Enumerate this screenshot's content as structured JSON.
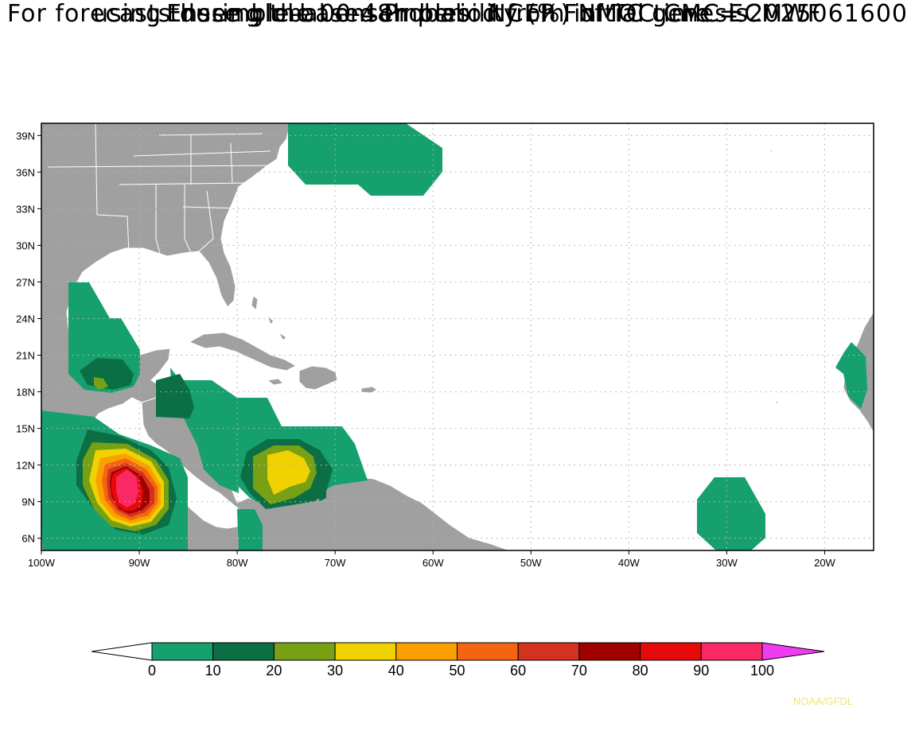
{
  "title": {
    "line1": "Ensemble-based Probability (%) of TC genesis",
    "line2": "using these global ensembles:   NCEP FNMOC CMC ECMWF",
    "line3": "For forecasts during the 00-48h period from initial time = 2025061600"
  },
  "map": {
    "projection": "cylindrical",
    "lon_range": [
      -100,
      -15
    ],
    "lat_range": [
      5,
      40
    ],
    "lon_ticks": [
      -100,
      -90,
      -80,
      -70,
      -60,
      -50,
      -40,
      -30,
      -20
    ],
    "lon_tick_labels": [
      "100W",
      "90W",
      "80W",
      "70W",
      "60W",
      "50W",
      "40W",
      "30W",
      "20W"
    ],
    "lat_ticks": [
      6,
      9,
      12,
      15,
      18,
      21,
      24,
      27,
      30,
      33,
      36,
      39
    ],
    "lat_tick_labels": [
      "6N",
      "9N",
      "12N",
      "15N",
      "18N",
      "21N",
      "24N",
      "27N",
      "30N",
      "33N",
      "36N",
      "39N"
    ],
    "grid": "dotted",
    "land_color": "#a0a0a0",
    "ocean_color": "#ffffff",
    "border_color": "#ffffff"
  },
  "colorbar": {
    "levels": [
      "0",
      "10",
      "20",
      "30",
      "40",
      "50",
      "60",
      "70",
      "80",
      "90",
      "100"
    ],
    "low_color": "#ffffff",
    "colors": [
      "#16a06e",
      "#0b6e44",
      "#78a014",
      "#f0d200",
      "#faa000",
      "#f56410",
      "#d2321e",
      "#a00000",
      "#e60a0a",
      "#fa2864"
    ],
    "high_color": "#f03cf0"
  },
  "credit": "NOAA/GFDL"
}
